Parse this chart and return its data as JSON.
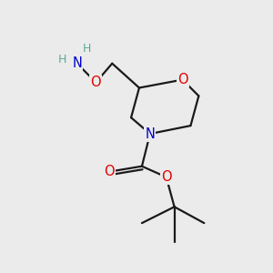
{
  "background_color": "#ebebeb",
  "bond_color": "#1a1a1a",
  "atom_colors": {
    "O": "#e00000",
    "N": "#0000cc",
    "H": "#5aaa9a",
    "C": "#1a1a1a"
  },
  "font_size_atom": 10.5,
  "font_size_H": 9.0,
  "line_width": 1.6,
  "figsize": [
    3.0,
    3.0
  ],
  "dpi": 100
}
